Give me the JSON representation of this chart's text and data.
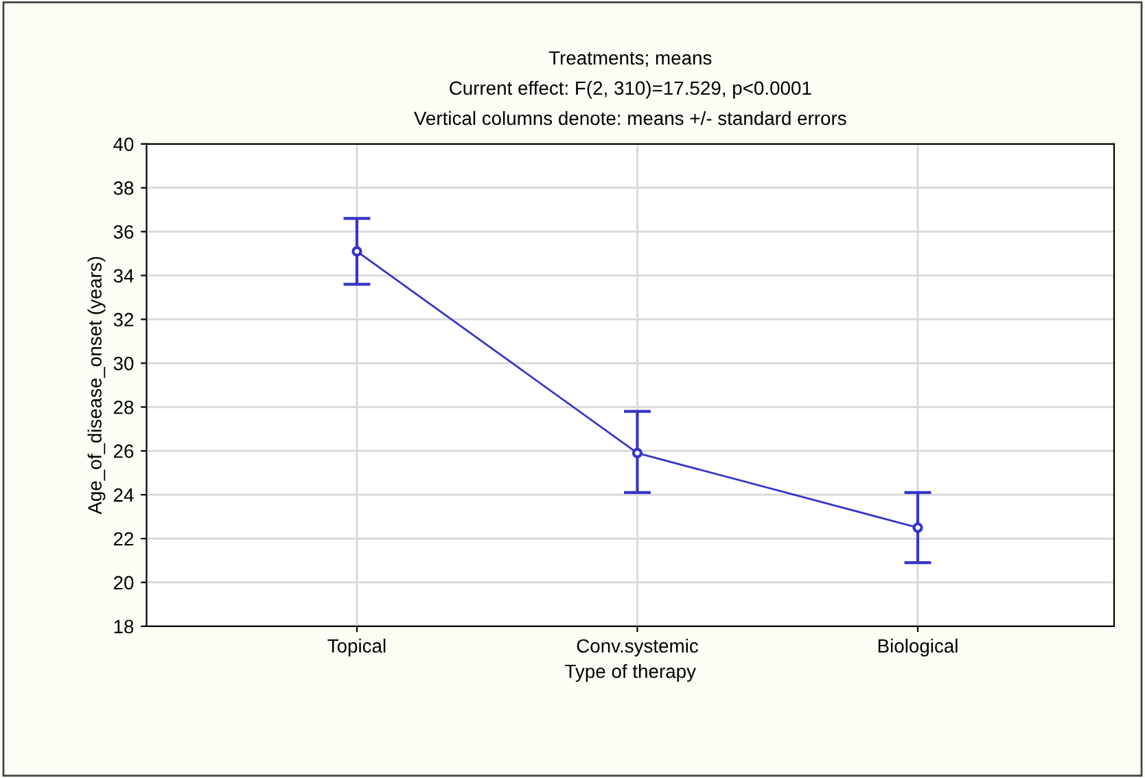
{
  "chart_data": {
    "type": "line",
    "title": "Treatments; means",
    "subtitle": "Current effect: F(2, 310)=17.529, p<0.0001\nVertical columns denote: means +/- standard errors",
    "xlabel": "Type of therapy",
    "ylabel": "Age_of_disease_onset (years)",
    "categories": [
      "Topical",
      "Conv.systemic",
      "Biological"
    ],
    "series": [
      {
        "color": "#3535c8",
        "values": [
          35.1,
          25.9,
          22.5
        ],
        "errors": [
          [
            33.6,
            36.6
          ],
          [
            24.1,
            27.8
          ],
          [
            20.9,
            24.1
          ]
        ]
      }
    ],
    "ylim": [
      18,
      40
    ],
    "yticks": [
      18,
      20,
      22,
      24,
      26,
      28,
      30,
      32,
      34,
      36,
      38,
      40
    ],
    "grid": true,
    "marker": "circle",
    "line_style": "solid"
  }
}
